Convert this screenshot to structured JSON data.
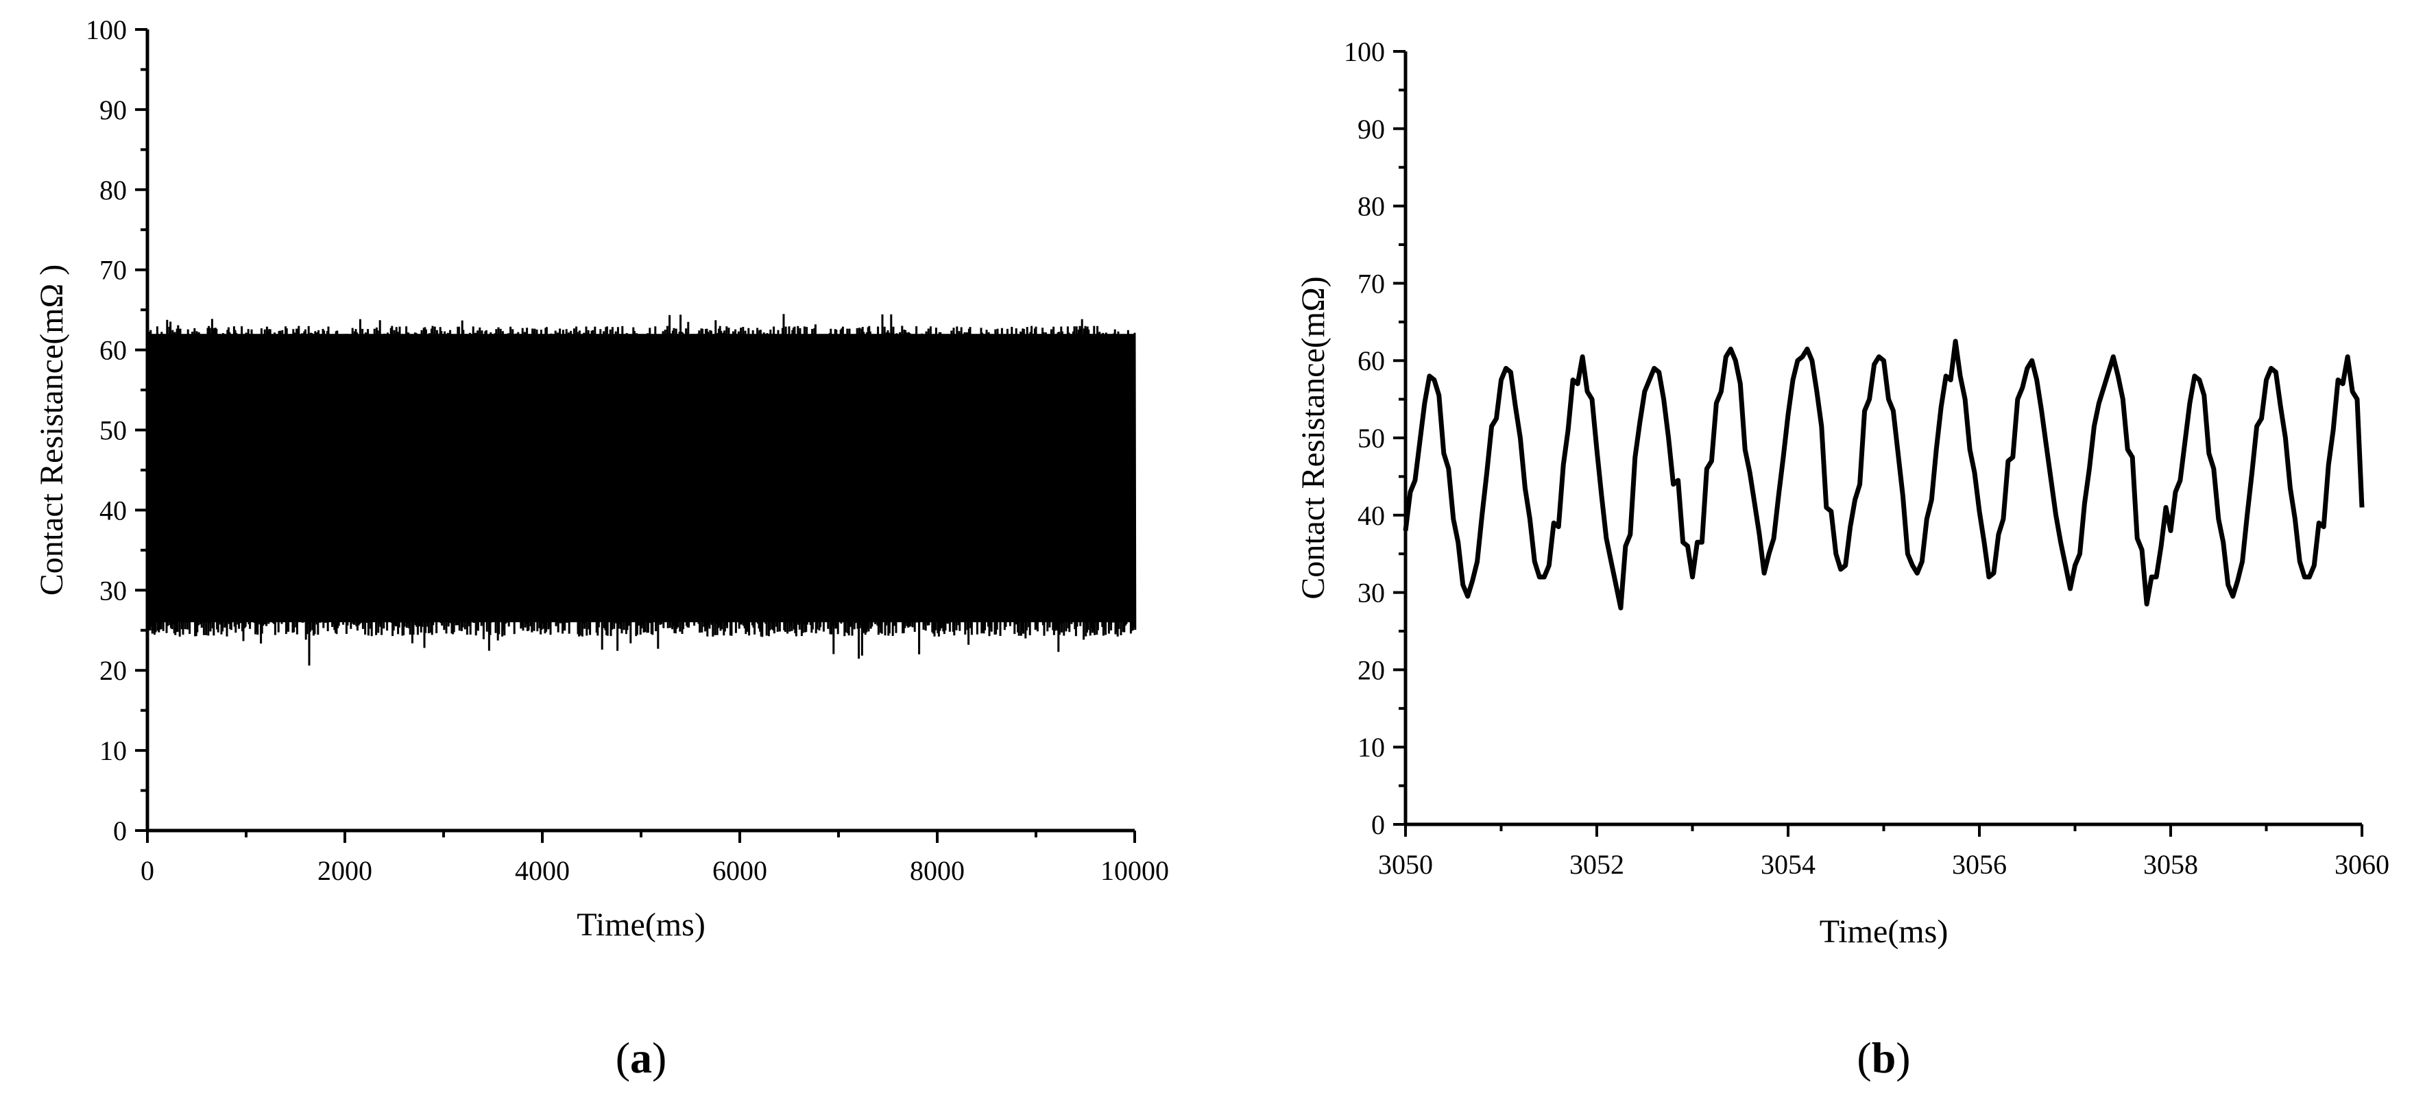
{
  "chart_data": [
    {
      "type": "line",
      "panel_label": "a",
      "title": "",
      "xlabel": "Time(ms)",
      "ylabel": "Contact Resistance(mΩ )",
      "xlim": [
        0,
        10000
      ],
      "ylim": [
        0,
        100
      ],
      "xticks": [
        "0",
        "2000",
        "4000",
        "6000",
        "8000",
        "10000"
      ],
      "yticks": [
        "0",
        "10",
        "20",
        "30",
        "40",
        "50",
        "60",
        "70",
        "80",
        "90",
        "100"
      ],
      "grid": false,
      "legend": "none",
      "series": [
        {
          "style": "dense-oscillation",
          "x_range": [
            0,
            10000
          ],
          "upper_envelope_typical": 62,
          "upper_envelope_max": 63.5,
          "lower_envelope_typical": 26,
          "lower_envelope_min": 22,
          "color": "#000000"
        }
      ]
    },
    {
      "type": "line",
      "panel_label": "b",
      "title": "",
      "xlabel": "Time(ms)",
      "ylabel": "Contact Resistance(mΩ)",
      "xlim": [
        3050,
        3060
      ],
      "ylim": [
        0,
        100
      ],
      "xticks": [
        "3050",
        "3052",
        "3054",
        "3056",
        "3058",
        "3060"
      ],
      "yticks": [
        "0",
        "10",
        "20",
        "30",
        "40",
        "50",
        "60",
        "70",
        "80",
        "90",
        "100"
      ],
      "grid": false,
      "legend": "none",
      "series": [
        {
          "color": "#000000",
          "x": [
            3050.0,
            3050.05,
            3050.1,
            3050.15,
            3050.2,
            3050.25,
            3050.3,
            3050.35,
            3050.4,
            3050.45,
            3050.5,
            3050.55,
            3050.6,
            3050.65,
            3050.7,
            3050.75,
            3050.8,
            3050.85,
            3050.9,
            3050.95,
            3051.0,
            3051.05,
            3051.1,
            3051.15,
            3051.2,
            3051.25,
            3051.3,
            3051.35,
            3051.4,
            3051.45,
            3051.5,
            3051.55,
            3051.6,
            3051.65,
            3051.7,
            3051.75,
            3051.8,
            3051.85,
            3051.9,
            3051.95,
            3052.0,
            3052.05,
            3052.1,
            3052.15,
            3052.2,
            3052.25,
            3052.3,
            3052.35,
            3052.4,
            3052.45,
            3052.5,
            3052.55,
            3052.6,
            3052.65,
            3052.7,
            3052.75,
            3052.8,
            3052.85,
            3052.9,
            3052.95,
            3053.0,
            3053.05,
            3053.1,
            3053.15,
            3053.2,
            3053.25,
            3053.3,
            3053.35,
            3053.4,
            3053.45,
            3053.5,
            3053.55,
            3053.6,
            3053.65,
            3053.7,
            3053.75,
            3053.8,
            3053.85,
            3053.9,
            3053.95,
            3054.0,
            3054.05,
            3054.1,
            3054.15,
            3054.2,
            3054.25,
            3054.3,
            3054.35,
            3054.4,
            3054.45,
            3054.5,
            3054.55,
            3054.6,
            3054.65,
            3054.7,
            3054.75,
            3054.8,
            3054.85,
            3054.9,
            3054.95,
            3055.0,
            3055.05,
            3055.1,
            3055.15,
            3055.2,
            3055.25,
            3055.3,
            3055.35,
            3055.4,
            3055.45,
            3055.5,
            3055.55,
            3055.6,
            3055.65,
            3055.7,
            3055.75,
            3055.8,
            3055.85,
            3055.9,
            3055.95,
            3056.0,
            3056.05,
            3056.1,
            3056.15,
            3056.2,
            3056.25,
            3056.3,
            3056.35,
            3056.4,
            3056.45,
            3056.5,
            3056.55,
            3056.6,
            3056.65,
            3056.7,
            3056.75,
            3056.8,
            3056.85,
            3056.9,
            3056.95,
            3057.0,
            3057.05,
            3057.1,
            3057.15,
            3057.2,
            3057.25,
            3057.3,
            3057.35,
            3057.4,
            3057.45,
            3057.5,
            3057.55,
            3057.6,
            3057.65,
            3057.7,
            3057.75,
            3057.8,
            3057.85,
            3057.9,
            3057.95,
            3058.0,
            3058.05,
            3058.1,
            3058.15,
            3058.2,
            3058.25,
            3058.3,
            3058.35,
            3058.4,
            3058.45,
            3058.5,
            3058.55,
            3058.6,
            3058.65,
            3058.7,
            3058.75,
            3058.8,
            3058.85,
            3058.9,
            3058.95,
            3059.0,
            3059.05,
            3059.1,
            3059.15,
            3059.2,
            3059.25,
            3059.3,
            3059.35,
            3059.4,
            3059.45,
            3059.5,
            3059.55,
            3059.6,
            3059.65,
            3059.7,
            3059.75,
            3059.8,
            3059.85,
            3059.9,
            3059.95,
            3060.0
          ],
          "y": [
            38.0,
            43.0,
            44.5,
            49.5,
            54.5,
            58.0,
            57.5,
            55.5,
            48.0,
            46.0,
            39.5,
            36.5,
            31.0,
            29.5,
            31.5,
            34.0,
            40.0,
            45.5,
            51.5,
            52.5,
            57.5,
            59.0,
            58.5,
            54.0,
            50.0,
            43.5,
            39.5,
            34.0,
            32.0,
            32.0,
            33.5,
            39.0,
            38.5,
            46.5,
            51.0,
            57.5,
            57.0,
            60.5,
            56.0,
            55.0,
            48.5,
            42.5,
            37.0,
            34.0,
            31.0,
            28.0,
            36.0,
            37.5,
            47.5,
            52.0,
            56.0,
            57.5,
            59.0,
            58.5,
            55.0,
            50.0,
            44.0,
            44.5,
            36.5,
            36.0,
            32.0,
            36.5,
            36.5,
            46.0,
            47.0,
            54.5,
            56.0,
            60.5,
            61.5,
            60.0,
            57.0,
            48.5,
            45.5,
            41.5,
            37.5,
            32.5,
            35.0,
            37.0,
            42.5,
            47.5,
            53.0,
            57.5,
            60.0,
            60.5,
            61.5,
            60.0,
            56.0,
            51.5,
            41.0,
            40.5,
            35.0,
            33.0,
            33.5,
            38.5,
            42.0,
            44.0,
            53.5,
            55.0,
            59.5,
            60.5,
            60.0,
            55.0,
            53.5,
            48.0,
            42.5,
            35.0,
            33.5,
            32.5,
            34.0,
            39.5,
            42.0,
            48.5,
            54.0,
            58.0,
            57.5,
            62.5,
            58.0,
            55.0,
            48.5,
            45.5,
            40.5,
            36.5,
            32.0,
            32.5,
            37.5,
            39.5,
            47.0,
            47.5,
            55.0,
            56.5,
            59.0,
            60.0,
            57.5,
            53.5,
            49.0,
            44.5,
            40.0,
            36.5,
            33.5,
            30.5,
            33.5,
            35.0,
            41.5,
            46.0,
            51.5,
            54.5,
            56.5,
            58.5,
            60.5,
            58.0,
            55.0,
            48.5,
            47.5,
            37.0,
            35.5,
            28.5,
            32.0,
            32.0,
            36.0,
            41.0,
            38.0,
            43.0,
            44.5,
            49.5,
            54.5,
            58.0,
            57.5,
            55.5,
            48.0,
            46.0,
            39.5,
            36.5,
            31.0,
            29.5,
            31.5,
            34.0,
            40.0,
            45.5,
            51.5,
            52.5,
            57.5,
            59.0,
            58.5,
            54.0,
            50.0,
            43.5,
            39.5,
            34.0,
            32.0,
            32.0,
            33.5,
            39.0,
            38.5,
            46.5,
            51.0,
            57.5,
            57.0,
            60.5,
            56.0,
            55.0,
            41.0
          ]
        }
      ]
    }
  ]
}
